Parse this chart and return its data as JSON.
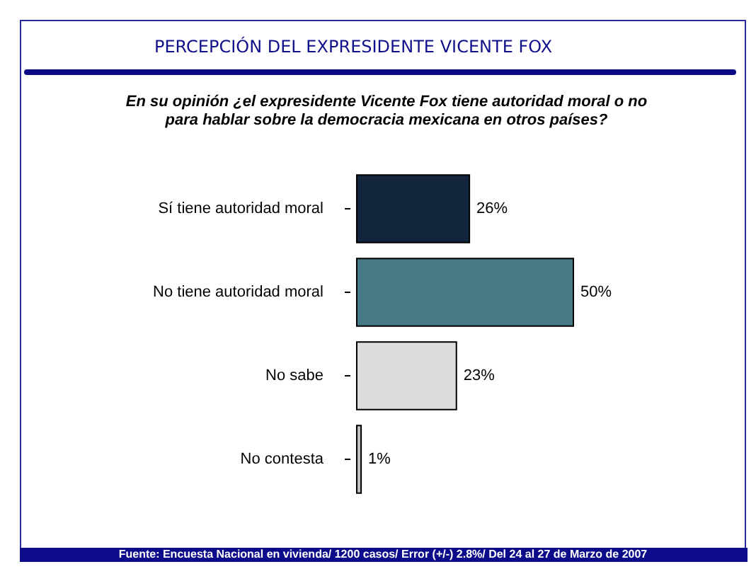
{
  "chart_data": {
    "type": "bar",
    "orientation": "horizontal",
    "title": "PERCEPCIÓN DEL EXPRESIDENTE VICENTE FOX",
    "subtitle": "En su opinión ¿el expresidente Vicente Fox tiene autoridad moral o no\npara hablar sobre la democracia mexicana en otros países?",
    "categories": [
      "Sí tiene autoridad moral",
      "No tiene autoridad moral",
      "No sabe",
      "No contesta"
    ],
    "values": [
      26,
      50,
      23,
      1
    ],
    "colors": [
      "#13243d",
      "#467986",
      "#dcdcdc",
      "#c0c0c0"
    ],
    "value_labels": [
      "26%",
      "50%",
      "23%",
      "1%"
    ],
    "annotations": [
      "Fuente: Encuesta Nacional en vivienda/ 1200 casos/ Error (+/-) 2.8%/ Del 24 al 27 de Marzo de 2007"
    ]
  }
}
